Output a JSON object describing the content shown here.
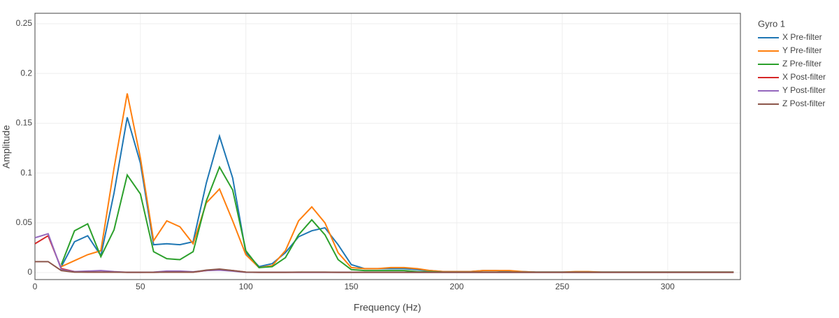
{
  "chart_data": {
    "type": "line",
    "xlabel": "Frequency (Hz)",
    "ylabel": "Amplitude",
    "legend_title": "Gyro 1",
    "grid": true,
    "x": [
      0,
      6.25,
      12.5,
      18.75,
      25,
      31.25,
      37.5,
      43.75,
      50,
      56.25,
      62.5,
      68.75,
      75,
      81.25,
      87.5,
      93.75,
      100,
      106.25,
      112.5,
      118.75,
      125,
      131.25,
      137.5,
      143.75,
      150,
      156.25,
      162.5,
      168.75,
      175,
      181.25,
      187.5,
      193.75,
      200,
      206.25,
      212.5,
      218.75,
      225,
      231.25,
      237.5,
      243.75,
      250,
      256.25,
      262.5,
      268.75,
      275,
      281.25,
      287.5,
      293.75,
      300,
      306.25,
      312.5,
      318.75,
      325,
      331.25
    ],
    "xlim": [
      0,
      334.5
    ],
    "xticks": [
      0,
      50,
      100,
      150,
      200,
      250,
      300
    ],
    "ylim": [
      -0.007,
      0.2605
    ],
    "yticks": [
      0,
      0.05,
      0.1,
      0.15,
      0.2,
      0.25
    ],
    "series": [
      {
        "name": "X Pre-filter",
        "color": "#1f77b4",
        "values": [
          null,
          null,
          0.006,
          0.031,
          0.037,
          0.017,
          0.08,
          0.156,
          0.11,
          0.028,
          0.029,
          0.028,
          0.031,
          0.09,
          0.137,
          0.095,
          0.02,
          0.006,
          0.009,
          0.02,
          0.036,
          0.042,
          0.045,
          0.028,
          0.008,
          0.004,
          0.004,
          0.004,
          0.004,
          0.003,
          0.002,
          0.001,
          0.001,
          0.001,
          0.002,
          0.002,
          0.001,
          0.001,
          0.0005,
          0.0005,
          0.0005,
          0.0005,
          0.0005,
          0.0005,
          0.0005,
          0.0005,
          0.0005,
          0.0005,
          0.0005,
          0.0005,
          0.0005,
          0.0005,
          0.0005,
          0.0005
        ]
      },
      {
        "name": "Y Pre-filter",
        "color": "#ff7f0e",
        "values": [
          null,
          null,
          0.006,
          0.012,
          0.018,
          0.022,
          0.105,
          0.18,
          0.115,
          0.032,
          0.052,
          0.046,
          0.029,
          0.07,
          0.084,
          0.052,
          0.018,
          0.005,
          0.007,
          0.022,
          0.052,
          0.066,
          0.05,
          0.02,
          0.005,
          0.004,
          0.004,
          0.005,
          0.005,
          0.004,
          0.002,
          0.001,
          0.001,
          0.001,
          0.002,
          0.002,
          0.002,
          0.001,
          0.0005,
          0.0005,
          0.0005,
          0.001,
          0.001,
          0.0005,
          0.0005,
          0.0005,
          0.0005,
          0.0005,
          0.0005,
          0.0005,
          0.0005,
          0.0005,
          0.0005,
          0.0005
        ]
      },
      {
        "name": "Z Pre-filter",
        "color": "#2ca02c",
        "values": [
          null,
          null,
          0.008,
          0.042,
          0.049,
          0.016,
          0.043,
          0.098,
          0.079,
          0.021,
          0.014,
          0.013,
          0.021,
          0.072,
          0.106,
          0.083,
          0.022,
          0.005,
          0.006,
          0.015,
          0.038,
          0.053,
          0.038,
          0.013,
          0.003,
          0.002,
          0.002,
          0.002,
          0.002,
          0.001,
          0.001,
          0.0005,
          0.0005,
          0.0005,
          0.0005,
          0.0005,
          0.0005,
          0.0005,
          0.0005,
          0.0005,
          0.0005,
          0.0005,
          0.0005,
          0.0005,
          0.0005,
          0.0005,
          0.0005,
          0.0005,
          0.0005,
          0.0005,
          0.0005,
          0.0005,
          0.0005,
          0.0005
        ]
      },
      {
        "name": "X Post-filter",
        "color": "#d62728",
        "values": [
          0.029,
          0.037,
          0.004,
          0.001,
          0.0005,
          0.0005,
          0.0005,
          0.0003,
          0.0003,
          0.0003,
          0.0005,
          0.0005,
          0.0005,
          0.002,
          0.003,
          0.002,
          0.0005,
          0.0003,
          0.0003,
          0.0003,
          0.0003,
          0.0003,
          0.0003,
          0.0003,
          0.0003,
          0.0003,
          0.0003,
          0.0003,
          0.0003,
          0.0003,
          0.0003,
          0.0003,
          0.0003,
          0.0003,
          0.0003,
          0.0003,
          0.0003,
          0.0003,
          0.0003,
          0.0003,
          0.0003,
          0.0003,
          0.0003,
          0.0003,
          0.0003,
          0.0003,
          0.0003,
          0.0003,
          0.0003,
          0.0003,
          0.0003,
          0.0003,
          0.0003,
          0.0003
        ]
      },
      {
        "name": "Y Post-filter",
        "color": "#9467bd",
        "values": [
          0.035,
          0.039,
          0.003,
          0.001,
          0.0015,
          0.002,
          0.001,
          0.0003,
          0.0003,
          0.0005,
          0.0015,
          0.0015,
          0.0008,
          0.002,
          0.0025,
          0.0015,
          0.0003,
          0.0003,
          0.0003,
          0.0003,
          0.0003,
          0.0003,
          0.0003,
          0.0003,
          0.0003,
          0.0003,
          0.0003,
          0.0003,
          0.0003,
          0.0003,
          0.0003,
          0.0003,
          0.0003,
          0.0003,
          0.0003,
          0.0003,
          0.0003,
          0.0003,
          0.0003,
          0.0003,
          0.0003,
          0.0003,
          0.0003,
          0.0003,
          0.0003,
          0.0003,
          0.0003,
          0.0003,
          0.0003,
          0.0003,
          0.0003,
          0.0003,
          0.0003,
          0.0003
        ]
      },
      {
        "name": "Z Post-filter",
        "color": "#8c564b",
        "values": [
          0.011,
          0.011,
          0.002,
          0.0005,
          0.0005,
          0.0005,
          0.0005,
          0.0003,
          0.0003,
          0.0003,
          0.0005,
          0.0005,
          0.0005,
          0.0025,
          0.0035,
          0.002,
          0.0005,
          0.0003,
          0.0003,
          0.0003,
          0.0005,
          0.0005,
          0.0005,
          0.0003,
          0.0003,
          0.0003,
          0.0003,
          0.0003,
          0.0003,
          0.0003,
          0.0003,
          0.0003,
          0.0003,
          0.0003,
          0.0003,
          0.0003,
          0.0003,
          0.0003,
          0.0003,
          0.0003,
          0.0003,
          0.0003,
          0.0003,
          0.0003,
          0.0003,
          0.0003,
          0.0003,
          0.0003,
          0.0003,
          0.0003,
          0.0003,
          0.0003,
          0.0003,
          0.0003
        ]
      }
    ]
  }
}
